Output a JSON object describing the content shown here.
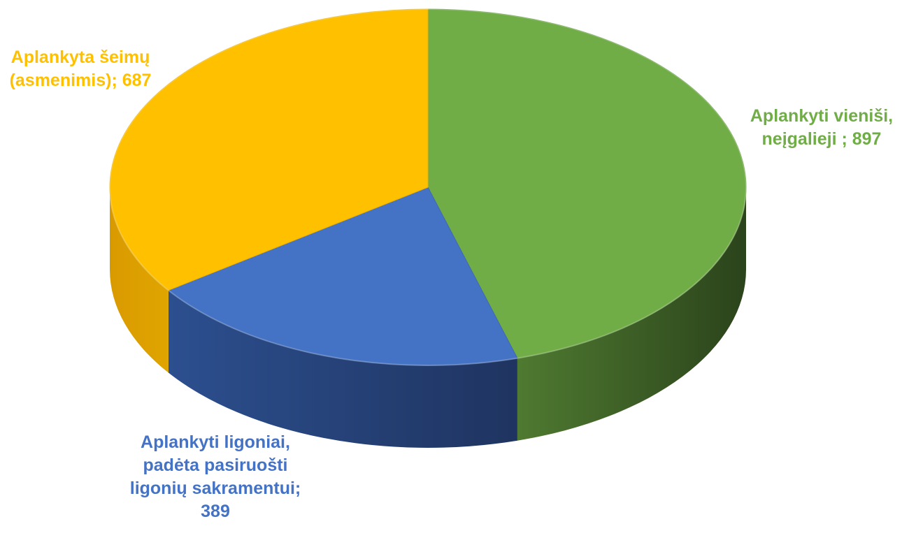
{
  "chart_data": {
    "type": "pie",
    "style": "3d",
    "title": "",
    "slices": [
      {
        "name": "Aplankyti vienėši, neįgalieji",
        "value": 897,
        "color": "#70AD47",
        "label_lines": [
          "Aplankyti vieniši,",
          "neįgalieji ; 897"
        ],
        "label_position": "right"
      },
      {
        "name": "Aplankyti ligoniai, padėta pasiruošti ligonių sakramentui",
        "value": 389,
        "color": "#4472C4",
        "label_lines": [
          "Aplankyti ligoniai,",
          "padėta pasiruošti",
          "ligonių sakramentui;",
          "389"
        ],
        "label_position": "bottom-left"
      },
      {
        "name": "Aplankyta šeimų (asmenimis)",
        "value": 687,
        "color": "#FFC000",
        "label_lines": [
          "Aplankyta šeimų",
          "(asmenimis); 687"
        ],
        "label_position": "top-left"
      }
    ]
  }
}
